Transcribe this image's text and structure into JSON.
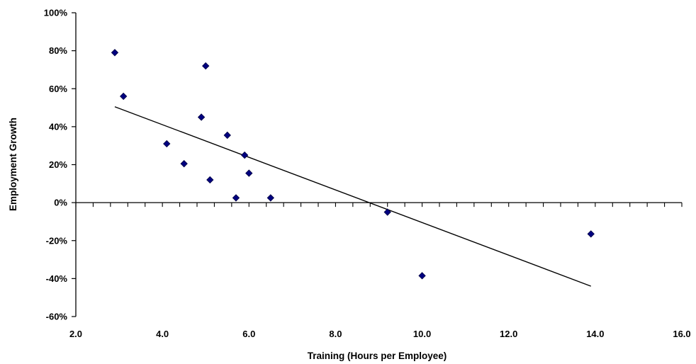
{
  "chart_data": {
    "type": "scatter",
    "title": "",
    "xlabel": "Training (Hours per Employee)",
    "ylabel": "Employment Growth",
    "xlim": [
      2.0,
      16.0
    ],
    "ylim": [
      -60,
      100
    ],
    "x_ticks": [
      2.0,
      4.0,
      6.0,
      8.0,
      10.0,
      12.0,
      14.0,
      16.0
    ],
    "x_tick_labels": [
      "2.0",
      "4.0",
      "6.0",
      "8.0",
      "10.0",
      "12.0",
      "14.0",
      "16.0"
    ],
    "y_ticks": [
      100,
      80,
      60,
      40,
      20,
      0,
      -20,
      -40,
      -60
    ],
    "y_tick_labels": [
      "100%",
      "80%",
      "60%",
      "40%",
      "20%",
      "0%",
      "-20%",
      "-40%",
      "-60%"
    ],
    "grid": false,
    "marker_color": "#000080",
    "points": [
      {
        "x": 2.9,
        "y": 79
      },
      {
        "x": 3.1,
        "y": 56
      },
      {
        "x": 4.1,
        "y": 31
      },
      {
        "x": 4.5,
        "y": 20.5
      },
      {
        "x": 4.9,
        "y": 45
      },
      {
        "x": 5.0,
        "y": 72
      },
      {
        "x": 5.1,
        "y": 12
      },
      {
        "x": 5.5,
        "y": 35.5
      },
      {
        "x": 5.7,
        "y": 2.5
      },
      {
        "x": 5.9,
        "y": 25
      },
      {
        "x": 6.0,
        "y": 15.5
      },
      {
        "x": 6.5,
        "y": 2.5
      },
      {
        "x": 9.2,
        "y": -5
      },
      {
        "x": 10.0,
        "y": -38.5
      },
      {
        "x": 13.9,
        "y": -16.5
      }
    ],
    "trendline": {
      "x": [
        2.9,
        13.9
      ],
      "y": [
        50.5,
        -44
      ]
    }
  }
}
